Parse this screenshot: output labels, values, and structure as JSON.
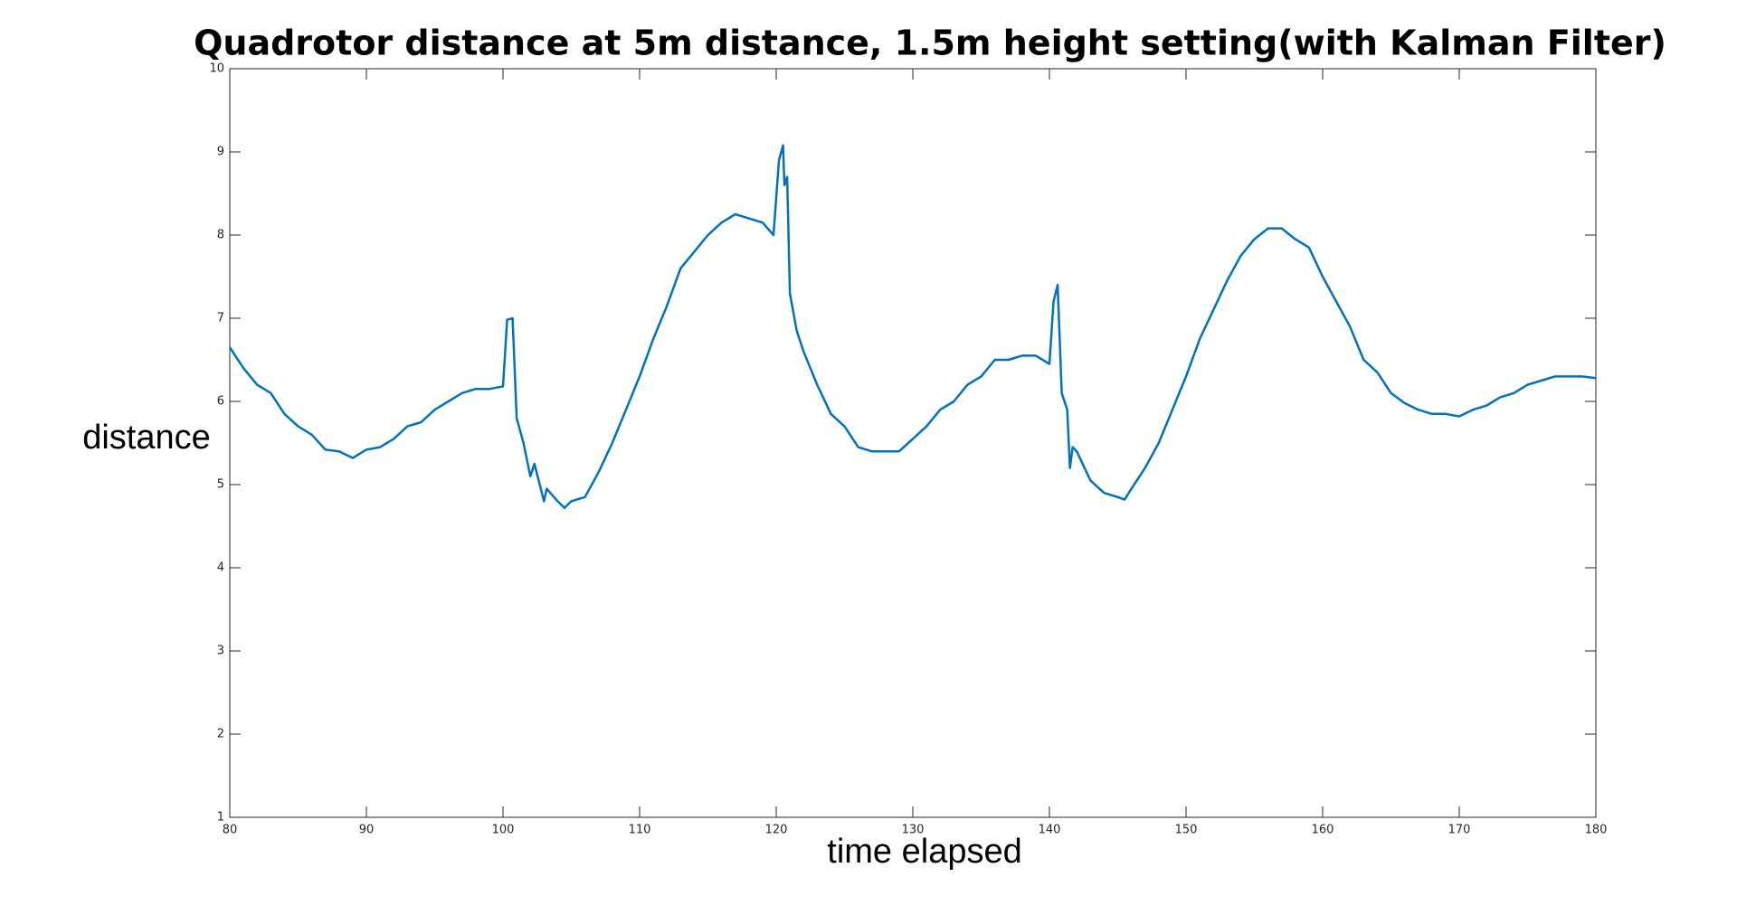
{
  "chart_data": {
    "type": "line",
    "title": "Quadrotor distance at 5m distance, 1.5m height setting(with Kalman Filter)",
    "x_label": "time elapsed",
    "y_label": "distance",
    "xlim": [
      80,
      180
    ],
    "xticks": [
      80,
      90,
      100,
      110,
      120,
      130,
      140,
      150,
      160,
      170,
      180
    ],
    "ylim": [
      1,
      10
    ],
    "yticks": [
      1,
      2,
      3,
      4,
      5,
      6,
      7,
      8,
      9,
      10
    ],
    "grid": false,
    "series": [
      {
        "color": "#0072bd",
        "x": [
          80,
          81,
          82,
          83,
          84,
          85,
          86,
          87,
          88,
          89,
          90,
          91,
          92,
          93,
          94,
          95,
          96,
          97,
          98,
          99,
          100,
          100.3,
          100.7,
          101,
          101.5,
          102,
          102.3,
          103,
          103.2,
          104,
          104.5,
          105,
          106,
          107,
          108,
          109,
          110,
          111,
          112,
          113,
          114,
          115,
          116,
          117,
          118,
          119,
          119.8,
          120.2,
          120.5,
          120.6,
          120.8,
          121,
          121.5,
          122,
          123,
          124,
          125,
          126,
          127,
          128,
          129,
          130,
          131,
          132,
          133,
          134,
          135,
          136,
          137,
          138,
          139,
          140,
          140.3,
          140.6,
          140.9,
          141.3,
          141.5,
          141.7,
          142,
          143,
          144,
          145,
          145.5,
          146,
          147,
          148,
          149,
          150,
          151,
          152,
          153,
          154,
          155,
          156,
          157,
          158,
          159,
          160,
          161,
          162,
          163,
          164,
          165,
          166,
          167,
          168,
          169,
          170,
          171,
          172,
          173,
          174,
          175,
          176,
          177,
          178,
          179,
          180
        ],
        "values": [
          6.65,
          6.4,
          6.2,
          6.1,
          5.85,
          5.7,
          5.6,
          5.42,
          5.4,
          5.32,
          5.42,
          5.45,
          5.55,
          5.7,
          5.75,
          5.9,
          6.0,
          6.1,
          6.15,
          6.15,
          6.18,
          6.98,
          7.0,
          5.8,
          5.5,
          5.1,
          5.25,
          4.8,
          4.95,
          4.8,
          4.72,
          4.8,
          4.85,
          5.15,
          5.5,
          5.9,
          6.3,
          6.75,
          7.15,
          7.6,
          7.8,
          8.0,
          8.15,
          8.25,
          8.2,
          8.15,
          8.0,
          8.9,
          9.08,
          8.6,
          8.7,
          7.3,
          6.85,
          6.6,
          6.2,
          5.85,
          5.7,
          5.45,
          5.4,
          5.4,
          5.4,
          5.55,
          5.7,
          5.9,
          6.0,
          6.2,
          6.3,
          6.5,
          6.5,
          6.55,
          6.55,
          6.45,
          7.2,
          7.4,
          6.1,
          5.9,
          5.2,
          5.45,
          5.4,
          5.05,
          4.9,
          4.85,
          4.82,
          4.95,
          5.2,
          5.5,
          5.9,
          6.3,
          6.75,
          7.1,
          7.45,
          7.75,
          7.95,
          8.08,
          8.08,
          7.95,
          7.85,
          7.5,
          7.2,
          6.9,
          6.5,
          6.35,
          6.1,
          5.98,
          5.9,
          5.85,
          5.85,
          5.82,
          5.9,
          5.95,
          6.05,
          6.1,
          6.2,
          6.25,
          6.3,
          6.3,
          6.3,
          6.28
        ]
      }
    ]
  }
}
